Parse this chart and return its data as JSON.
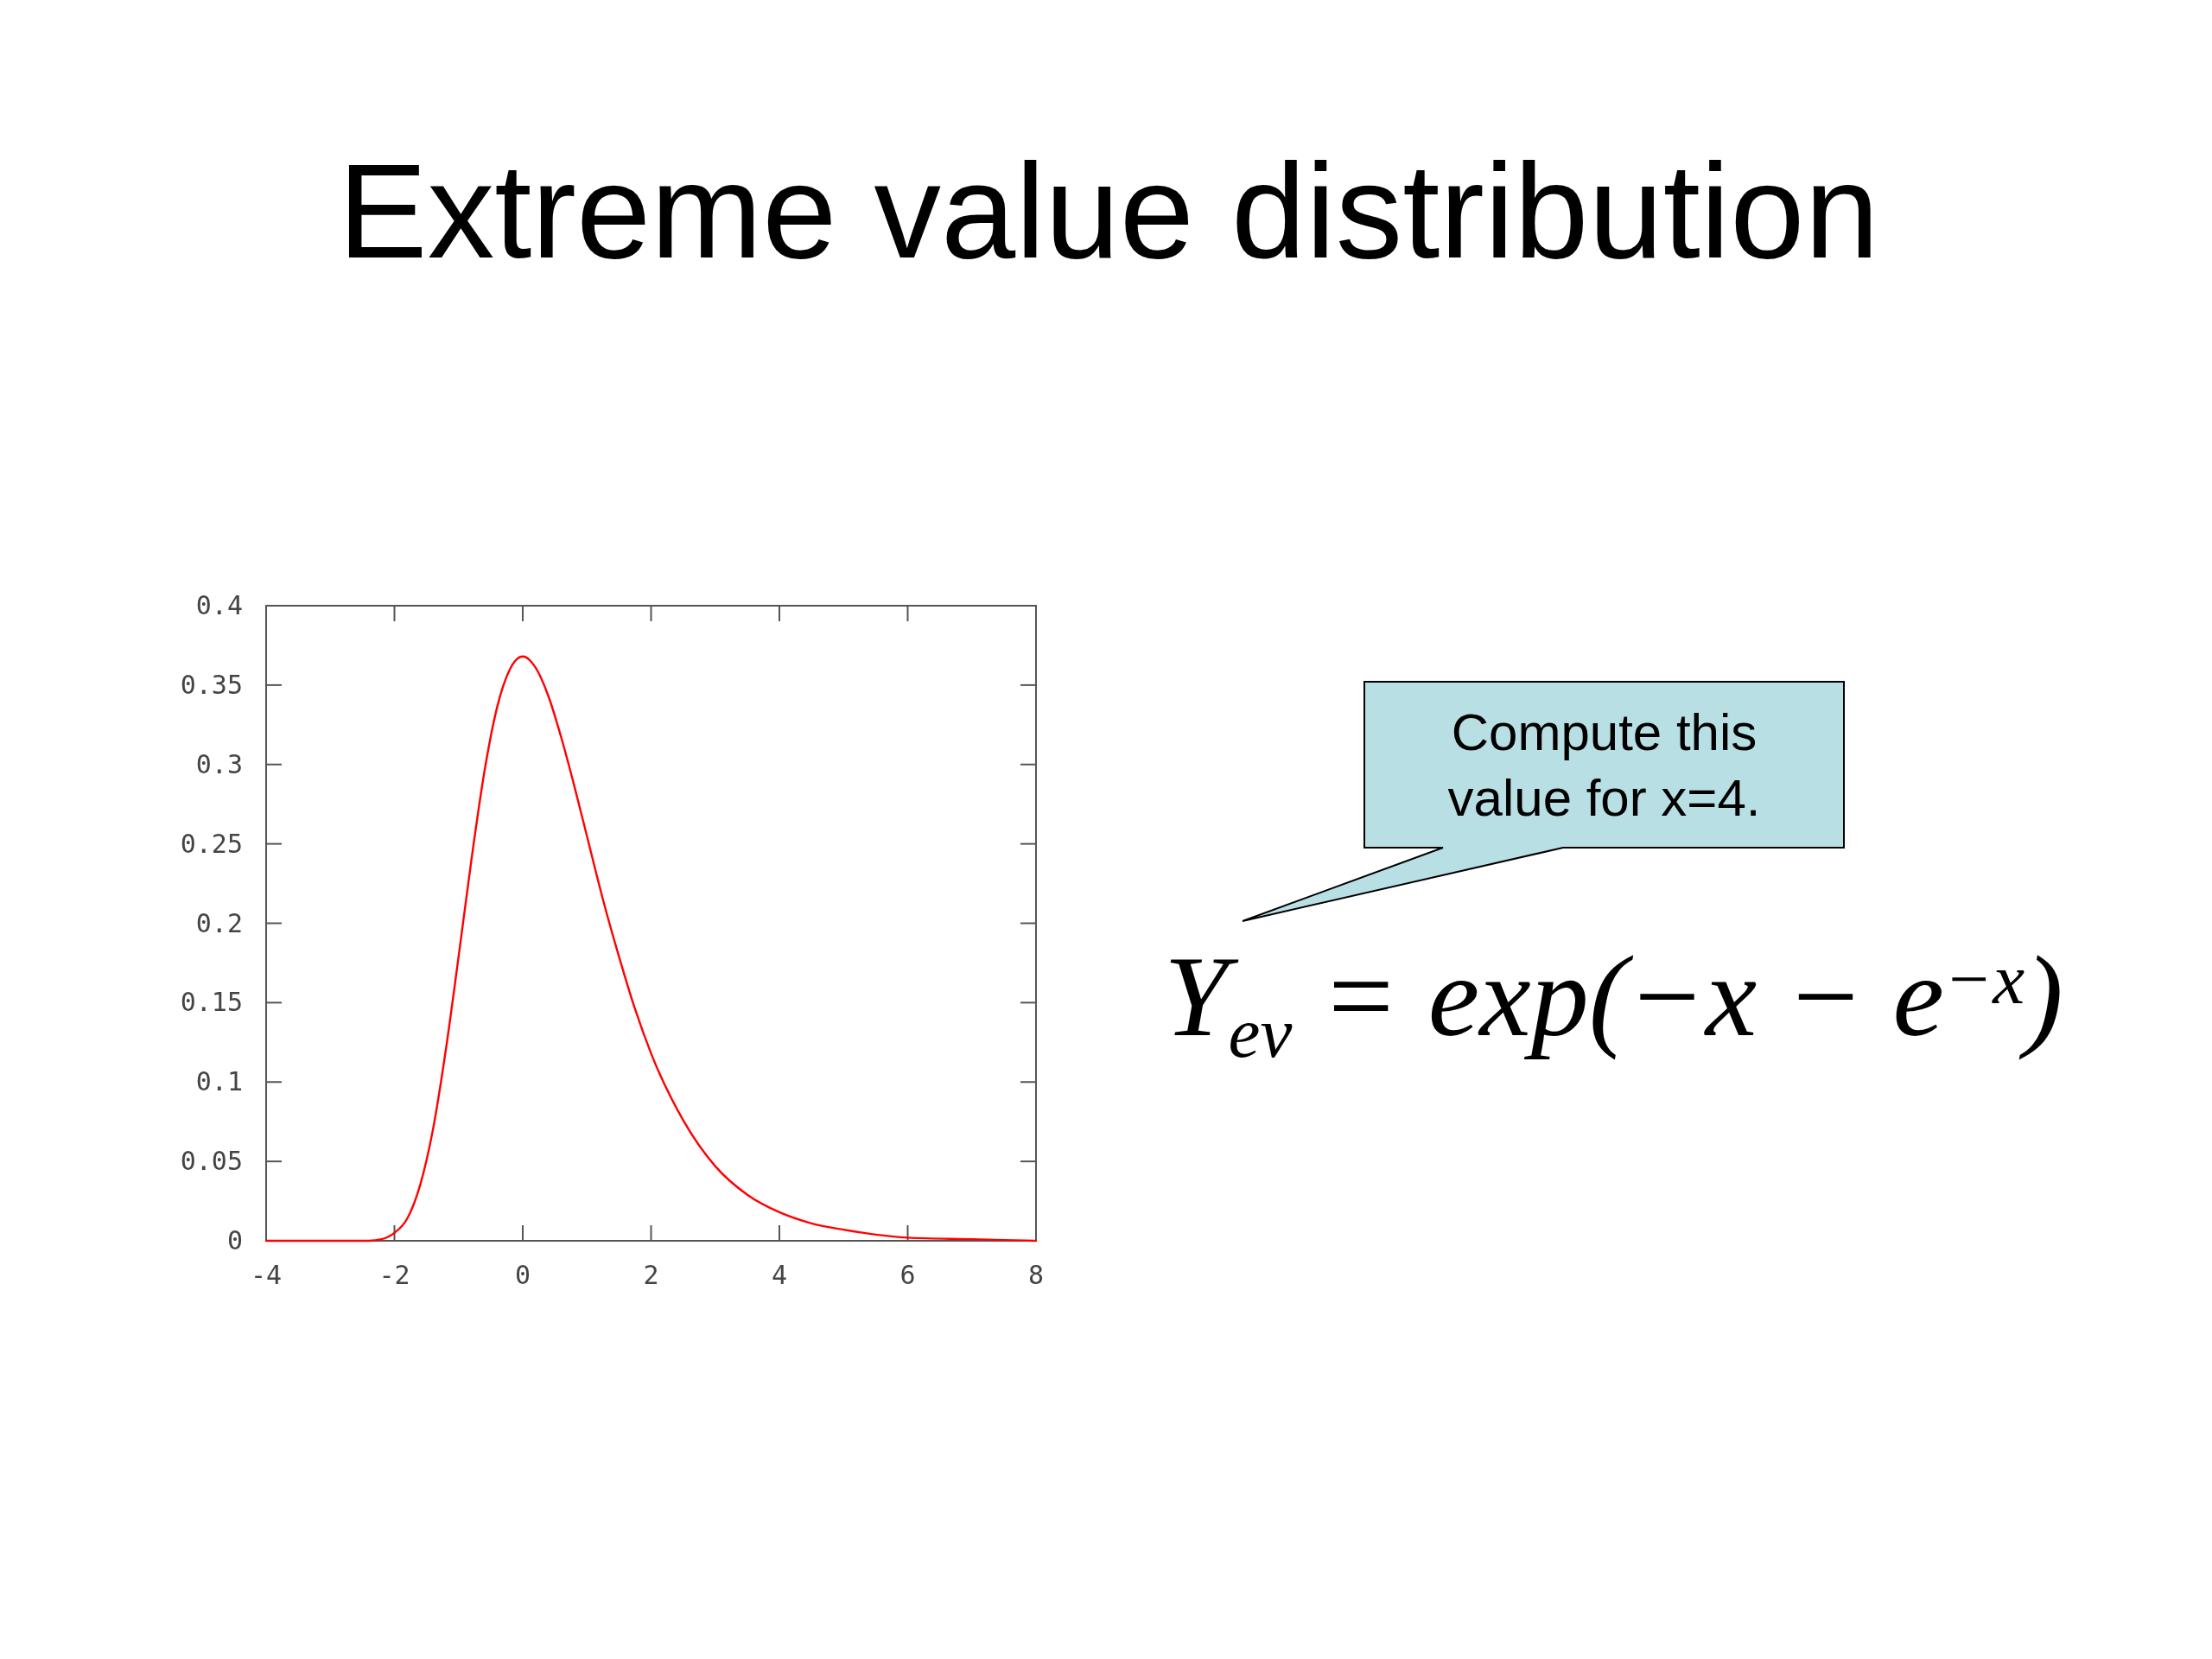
{
  "chart_data": {
    "type": "line",
    "title": "Extreme value distribution",
    "x": [
      -4,
      -3,
      -2.4,
      -2.2,
      -2,
      -1.8,
      -1.6,
      -1.4,
      -1.2,
      -1,
      -0.8,
      -0.6,
      -0.4,
      -0.2,
      0,
      0.2,
      0.4,
      0.6,
      0.8,
      1,
      1.25,
      1.5,
      1.75,
      2,
      2.5,
      3,
      3.5,
      4,
      4.5,
      5,
      6,
      7,
      8
    ],
    "series": [
      {
        "color": "#ff0000",
        "values": [
          0,
          0,
          0,
          0.001,
          0.005,
          0.014,
          0.035,
          0.07,
          0.12,
          0.179,
          0.24,
          0.295,
          0.336,
          0.36,
          0.368,
          0.361,
          0.343,
          0.317,
          0.287,
          0.255,
          0.215,
          0.179,
          0.146,
          0.118,
          0.076,
          0.047,
          0.029,
          0.018,
          0.011,
          0.007,
          0.002,
          0.001,
          0
        ]
      }
    ],
    "xlim": [
      -4,
      8
    ],
    "ylim": [
      0,
      0.4
    ],
    "xticks": [
      -4,
      -2,
      0,
      2,
      4,
      6,
      8
    ],
    "yticks": [
      0,
      0.05,
      0.1,
      0.15,
      0.2,
      0.25,
      0.3,
      0.35,
      0.4
    ],
    "line_style": "solid",
    "annotations": [
      "Compute this value for x=4.",
      "Y$_{ev}$ = exp(−x − e$^{−x}$)"
    ]
  }
}
